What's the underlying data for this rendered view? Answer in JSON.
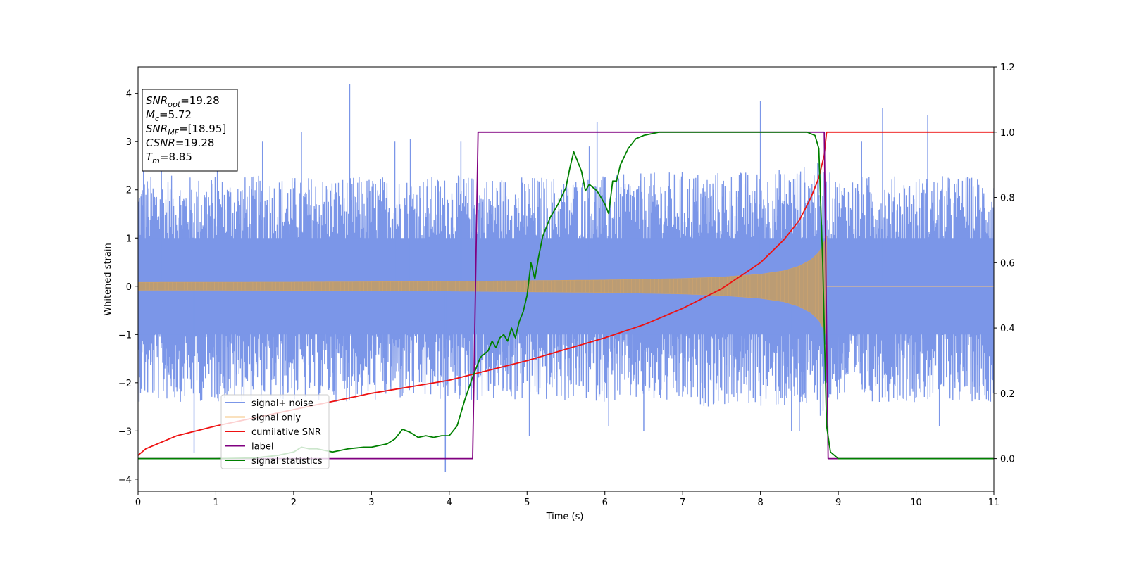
{
  "chart_data": {
    "type": "line",
    "title": "",
    "xlabel": "Time (s)",
    "ylabel": "Whitened strain",
    "xlim": [
      0,
      11
    ],
    "ylim_left": [
      -4.25,
      4.55
    ],
    "ylim_right": [
      -0.1,
      1.2
    ],
    "x_ticks": [
      0,
      1,
      2,
      3,
      4,
      5,
      6,
      7,
      8,
      9,
      10,
      11
    ],
    "y_left_ticks": [
      -4,
      -3,
      -2,
      -1,
      0,
      1,
      2,
      3,
      4
    ],
    "y_right_ticks": [
      0.0,
      0.2,
      0.4,
      0.6,
      0.8,
      1.0,
      1.2
    ],
    "legend_placement": "lower-left",
    "info_box": [
      {
        "main": "SNR",
        "sub": "opt",
        "eq": "=19.28"
      },
      {
        "main": "M",
        "sub": "c",
        "eq": "=5.72"
      },
      {
        "main": "SNR",
        "sub": "MF",
        "eq": "=[18.95]"
      },
      {
        "main": "CSNR",
        "sub": "",
        "eq": "=19.28"
      },
      {
        "main": "T",
        "sub": "m",
        "eq": "=8.85"
      }
    ],
    "series": [
      {
        "name": "signal+ noise",
        "axis": "left",
        "color": "#7b96e8",
        "render": "noise_band",
        "x": [
          0,
          1,
          2,
          3,
          4,
          5,
          6,
          7,
          8,
          8.5,
          8.8,
          8.85,
          9,
          10,
          11
        ],
        "y_upper": [
          2.3,
          2.3,
          2.3,
          2.3,
          2.3,
          2.3,
          2.3,
          2.4,
          2.4,
          2.5,
          2.6,
          2.4,
          2.3,
          2.3,
          2.3
        ],
        "y_lower": [
          -2.4,
          -2.4,
          -2.4,
          -2.4,
          -2.4,
          -2.4,
          -2.4,
          -2.5,
          -2.5,
          -2.6,
          -2.7,
          -2.5,
          -2.4,
          -2.4,
          -2.4
        ],
        "peaks": [
          {
            "x": 0.07,
            "y": 2.6
          },
          {
            "x": 0.3,
            "y": 2.5
          },
          {
            "x": 0.72,
            "y": -3.45
          },
          {
            "x": 1.02,
            "y": 2.6
          },
          {
            "x": 1.6,
            "y": 3.0
          },
          {
            "x": 2.1,
            "y": 3.2
          },
          {
            "x": 2.72,
            "y": 4.2
          },
          {
            "x": 3.3,
            "y": 3.0
          },
          {
            "x": 3.5,
            "y": 3.05
          },
          {
            "x": 3.95,
            "y": -3.85
          },
          {
            "x": 4.15,
            "y": 3.0
          },
          {
            "x": 5.03,
            "y": -3.1
          },
          {
            "x": 5.8,
            "y": 2.9
          },
          {
            "x": 5.9,
            "y": 3.4
          },
          {
            "x": 6.05,
            "y": -2.9
          },
          {
            "x": 6.5,
            "y": -3.0
          },
          {
            "x": 8.0,
            "y": 3.85
          },
          {
            "x": 8.4,
            "y": -3.0
          },
          {
            "x": 8.5,
            "y": -3.0
          },
          {
            "x": 9.3,
            "y": 3.0
          },
          {
            "x": 9.57,
            "y": 3.7
          },
          {
            "x": 10.15,
            "y": 3.55
          },
          {
            "x": 10.3,
            "y": -2.9
          }
        ]
      },
      {
        "name": "signal only",
        "axis": "left",
        "color": "#f5c37e",
        "render": "chirp_band",
        "x": [
          0,
          2,
          4,
          6,
          7,
          7.5,
          8,
          8.3,
          8.5,
          8.65,
          8.75,
          8.83,
          8.85
        ],
        "amplitude": [
          0.08,
          0.085,
          0.1,
          0.13,
          0.16,
          0.19,
          0.25,
          0.32,
          0.42,
          0.55,
          0.7,
          0.95,
          1.05
        ]
      },
      {
        "name": "cumilative SNR",
        "axis": "right",
        "color": "#ee1111",
        "x": [
          0,
          0.1,
          0.5,
          1,
          2,
          3,
          4,
          5,
          6,
          6.5,
          7,
          7.5,
          8,
          8.3,
          8.5,
          8.65,
          8.75,
          8.82,
          8.85,
          9,
          10,
          11
        ],
        "y": [
          0.01,
          0.03,
          0.07,
          0.1,
          0.15,
          0.2,
          0.24,
          0.3,
          0.37,
          0.41,
          0.46,
          0.52,
          0.6,
          0.67,
          0.73,
          0.8,
          0.86,
          0.93,
          1.0,
          1.0,
          1.0,
          1.0
        ]
      },
      {
        "name": "label",
        "axis": "right",
        "color": "#800080",
        "x": [
          0,
          4.3,
          4.37,
          8.82,
          8.87,
          11
        ],
        "y": [
          0,
          0,
          1,
          1,
          0,
          0
        ]
      },
      {
        "name": "signal statistics",
        "axis": "right",
        "color": "#008000",
        "x": [
          0,
          0.5,
          1,
          1.5,
          1.8,
          2,
          2.1,
          2.2,
          2.3,
          2.5,
          2.6,
          2.7,
          2.9,
          3.0,
          3.2,
          3.3,
          3.4,
          3.5,
          3.6,
          3.7,
          3.8,
          3.9,
          4.0,
          4.1,
          4.2,
          4.3,
          4.4,
          4.5,
          4.55,
          4.6,
          4.65,
          4.7,
          4.75,
          4.8,
          4.85,
          4.9,
          4.95,
          5.0,
          5.05,
          5.1,
          5.15,
          5.2,
          5.3,
          5.4,
          5.5,
          5.55,
          5.6,
          5.65,
          5.7,
          5.75,
          5.8,
          5.9,
          6.0,
          6.05,
          6.1,
          6.15,
          6.2,
          6.3,
          6.4,
          6.5,
          6.7,
          7.0,
          7.5,
          8.0,
          8.4,
          8.6,
          8.7,
          8.75,
          8.8,
          8.85,
          8.9,
          9.0,
          9.5,
          10,
          10.5,
          11
        ],
        "y": [
          0.0,
          0.0,
          0.0,
          0.002,
          0.01,
          0.02,
          0.035,
          0.03,
          0.03,
          0.02,
          0.025,
          0.03,
          0.035,
          0.035,
          0.045,
          0.06,
          0.09,
          0.08,
          0.065,
          0.07,
          0.065,
          0.07,
          0.07,
          0.1,
          0.18,
          0.25,
          0.31,
          0.33,
          0.36,
          0.34,
          0.37,
          0.38,
          0.36,
          0.4,
          0.37,
          0.42,
          0.45,
          0.5,
          0.6,
          0.55,
          0.62,
          0.68,
          0.74,
          0.78,
          0.83,
          0.89,
          0.94,
          0.91,
          0.88,
          0.82,
          0.84,
          0.82,
          0.78,
          0.75,
          0.85,
          0.85,
          0.9,
          0.95,
          0.98,
          0.99,
          1.0,
          1.0,
          1.0,
          1.0,
          1.0,
          1.0,
          0.99,
          0.95,
          0.6,
          0.1,
          0.02,
          0.0,
          0.0,
          0.0,
          0.0,
          0.0
        ]
      }
    ]
  }
}
